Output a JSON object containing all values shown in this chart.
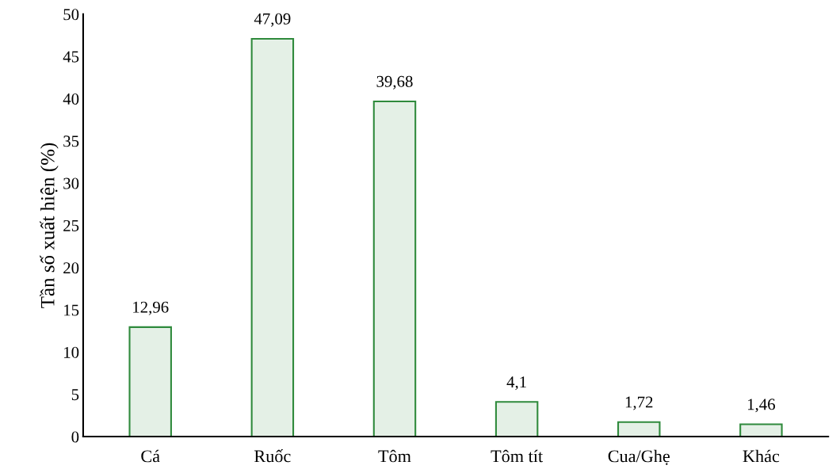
{
  "chart_data": {
    "type": "bar",
    "ylabel": "Tần số xuất hiện (%)",
    "categories": [
      "Cá",
      "Ruốc",
      "Tôm",
      "Tôm tít",
      "Cua/Ghẹ",
      "Khác"
    ],
    "values": [
      12.96,
      47.09,
      39.68,
      4.1,
      1.72,
      1.46
    ],
    "value_labels": [
      "12,96",
      "47,09",
      "39,68",
      "4,1",
      "1,72",
      "1,46"
    ],
    "color": "#2f8a3c",
    "ylim": [
      0,
      50
    ],
    "yticks": [
      0,
      5,
      10,
      15,
      20,
      25,
      30,
      35,
      40,
      45,
      50
    ],
    "grid": false,
    "legend": false
  }
}
